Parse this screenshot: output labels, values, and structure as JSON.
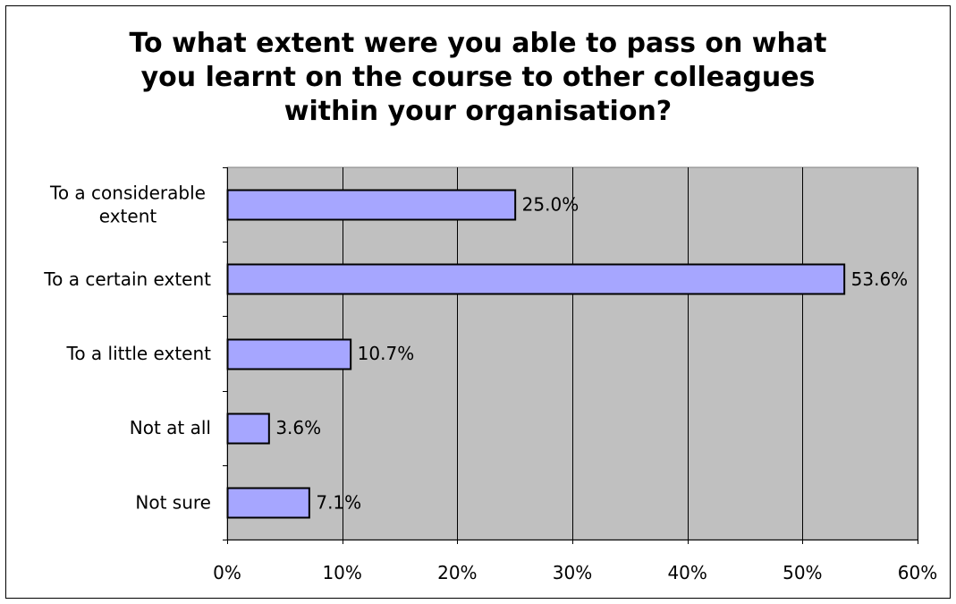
{
  "chart_data": {
    "type": "bar",
    "orientation": "horizontal",
    "title_lines": [
      "To what extent were you able to pass on what",
      "you learnt on the course to other colleagues",
      "within your organisation?"
    ],
    "categories": [
      [
        "To a considerable",
        "extent"
      ],
      [
        "To a certain extent"
      ],
      [
        "To a little extent"
      ],
      [
        "Not at all"
      ],
      [
        "Not sure"
      ]
    ],
    "values": [
      25.0,
      53.6,
      10.7,
      3.6,
      7.1
    ],
    "data_labels": [
      "25.0%",
      "53.6%",
      "10.7%",
      "3.6%",
      "7.1%"
    ],
    "xlim": [
      0,
      60
    ],
    "x_ticks": [
      0,
      10,
      20,
      30,
      40,
      50,
      60
    ],
    "x_tick_labels": [
      "0%",
      "10%",
      "20%",
      "30%",
      "40%",
      "50%",
      "60%"
    ],
    "grid": "vertical",
    "legend": "none",
    "colors": {
      "bar_fill": "#a6a6ff",
      "bar_stroke": "#000000",
      "plot_background": "#c0c0c0",
      "gridline": "#000000"
    }
  }
}
